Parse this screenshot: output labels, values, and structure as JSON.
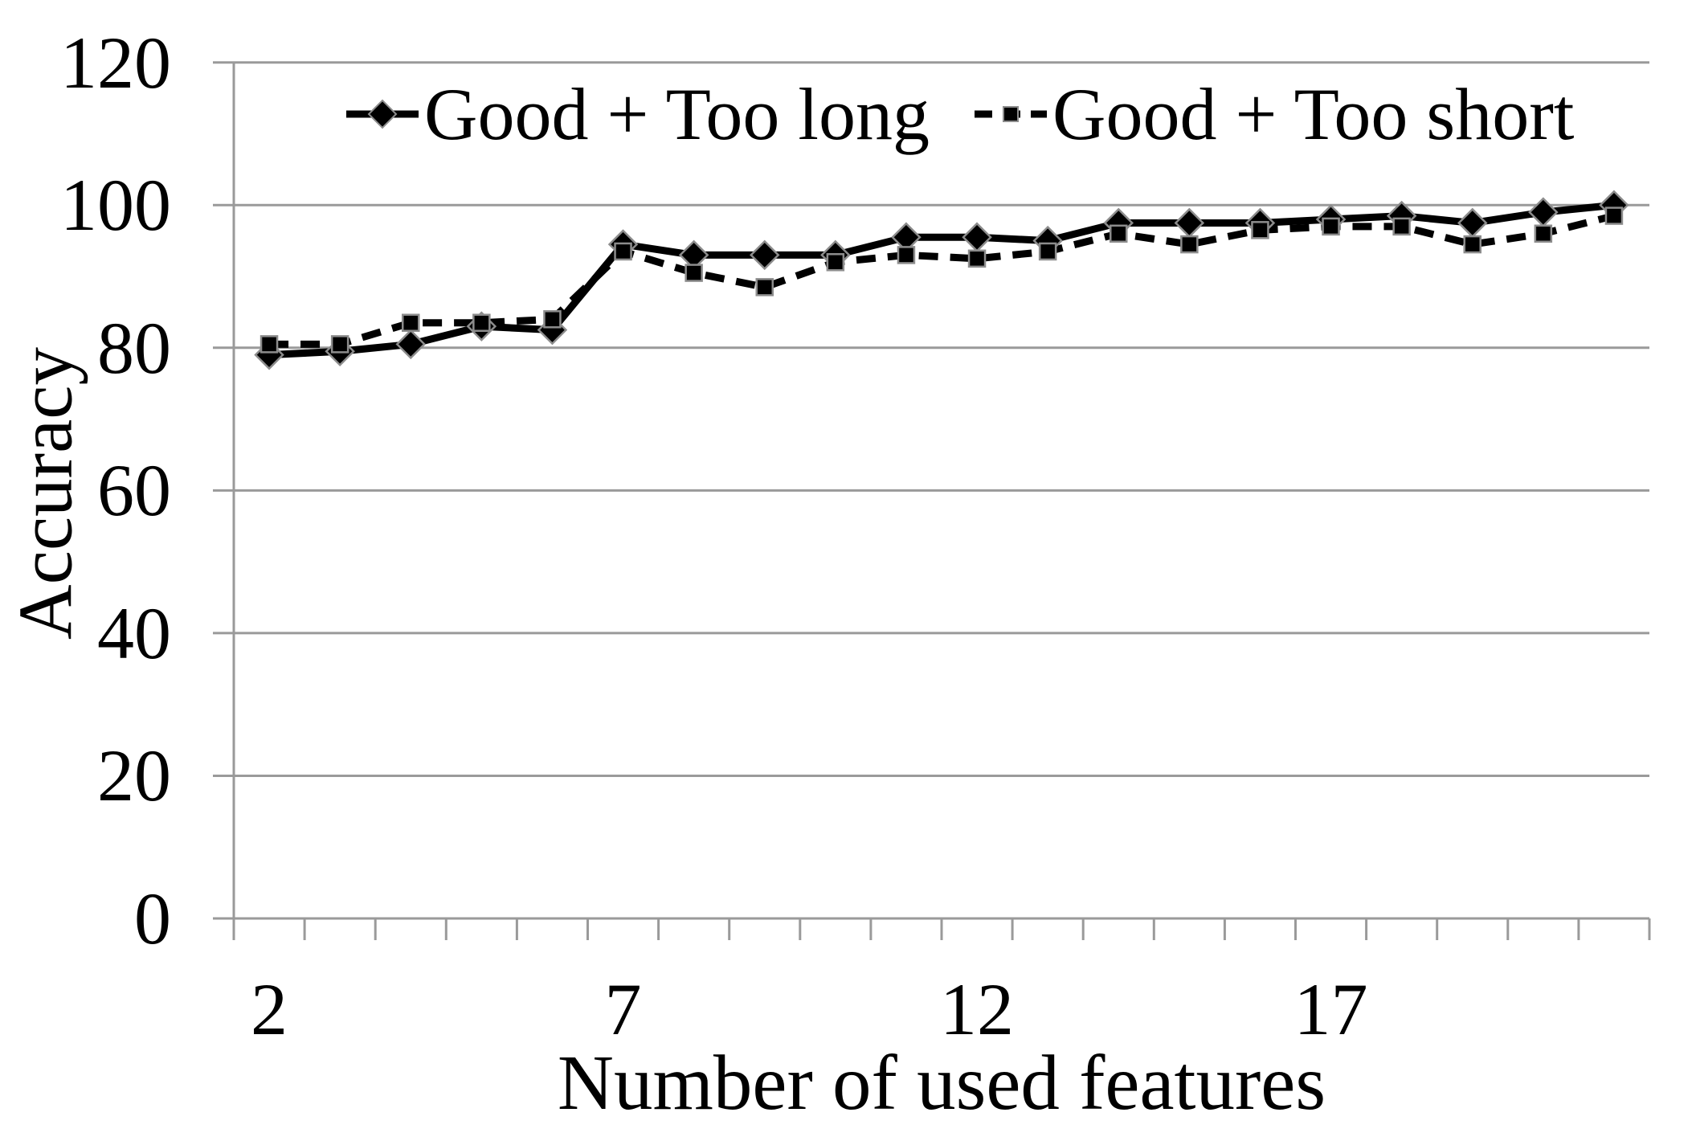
{
  "chart_data": {
    "type": "line",
    "xlabel": "Number of used features",
    "ylabel": "Accuracy",
    "x": [
      2,
      3,
      4,
      5,
      6,
      7,
      8,
      9,
      10,
      11,
      12,
      13,
      14,
      15,
      16,
      17,
      18,
      19,
      20,
      21
    ],
    "series": [
      {
        "name": "Good + Too long",
        "marker": "diamond",
        "line_style": "solid",
        "values": [
          79,
          79.5,
          80.5,
          83,
          82.5,
          94.5,
          93,
          93,
          93,
          95.5,
          95.5,
          95,
          97.5,
          97.5,
          97.5,
          98,
          98.5,
          97.5,
          99,
          100
        ]
      },
      {
        "name": "Good + Too short",
        "marker": "square",
        "line_style": "dashed",
        "values": [
          80.5,
          80.5,
          83.5,
          83.5,
          84,
          93.5,
          90.5,
          88.5,
          92,
          93,
          92.5,
          93.5,
          96,
          94.5,
          96.5,
          97,
          97,
          94.5,
          96,
          98.5
        ]
      }
    ],
    "ylim": [
      0,
      120
    ],
    "yticks": [
      0,
      20,
      40,
      60,
      80,
      100,
      120
    ],
    "xtick_labels": [
      2,
      7,
      12,
      17
    ],
    "grid": true,
    "legend_position": "top-inside"
  },
  "colors": {
    "series": "#000000",
    "grid": "#9a9a9a",
    "axis": "#9a9a9a",
    "marker_edge": "#8c8c8c",
    "text": "#000000",
    "background": "#ffffff"
  }
}
